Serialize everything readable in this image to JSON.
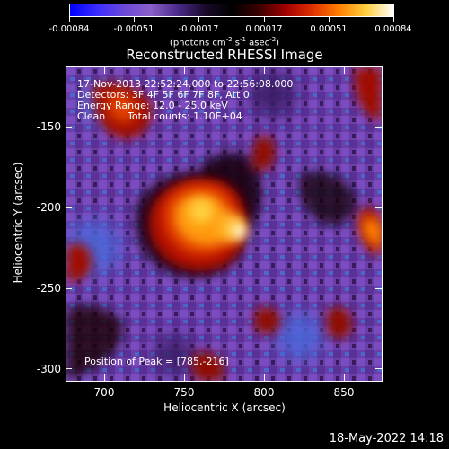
{
  "colorbar": {
    "tick_labels": [
      "-0.00084",
      "-0.00051",
      "-0.00017",
      "0.00017",
      "0.00051",
      "0.00084"
    ],
    "units": {
      "prefix": "(photons cm",
      "sup1": "-2",
      "mid1": " s",
      "sup2": "-1",
      "mid2": " asec",
      "sup3": "-2",
      "suffix": ")"
    },
    "gradient_colors": [
      "#0000ff",
      "#3a2cff",
      "#6b48d8",
      "#8a5fc8",
      "#4b2a8a",
      "#1a0a2a",
      "#000000",
      "#3a0000",
      "#a00000",
      "#e03000",
      "#ff8000",
      "#ffd040",
      "#ffffff"
    ]
  },
  "plot": {
    "title": "Reconstructed RHESSI Image",
    "x_axis_label": "Heliocentric X (arcsec)",
    "y_axis_label": "Heliocentric Y (arcsec)",
    "x_ticks": [
      "700",
      "750",
      "800",
      "850"
    ],
    "y_ticks": [
      "-150",
      "-200",
      "-250",
      "-300"
    ],
    "annotations": {
      "line1": "17-Nov-2013 22:52:24.000 to 22:56:08.000",
      "line2": "Detectors: 3F 4F 5F 6F 7F 8F, Att 0",
      "line3": "Energy Range: 12.0 - 25.0 keV",
      "line4_a": "Clean",
      "line4_b": "Total counts: 1.10E+04",
      "peak": "Position of Peak = [785,-216]"
    }
  },
  "footer": {
    "timestamp": "18-May-2022 14:18"
  }
}
